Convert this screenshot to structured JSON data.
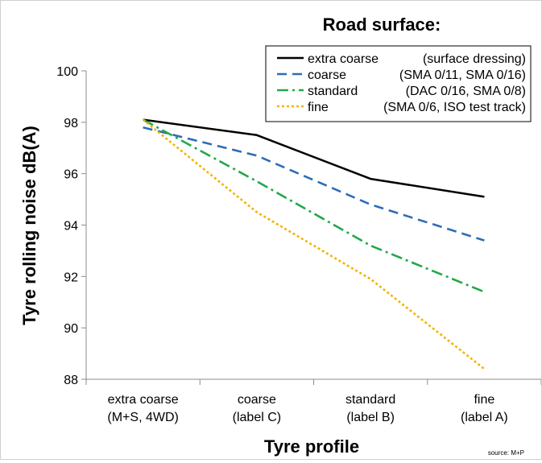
{
  "chart_data": {
    "type": "line",
    "legend_title": "Road surface:",
    "xlabel": "Tyre profile",
    "ylabel": "Tyre rolling noise dB(A)",
    "source": "source: M+P",
    "categories": [
      [
        "extra coarse",
        "(M+S, 4WD)"
      ],
      [
        "coarse",
        "(label C)"
      ],
      [
        "standard",
        "(label B)"
      ],
      [
        "fine",
        "(label A)"
      ]
    ],
    "ylim": [
      88,
      100
    ],
    "yticks": [
      88,
      90,
      92,
      94,
      96,
      98,
      100
    ],
    "grid": false,
    "legend_position": "top-right",
    "series": [
      {
        "name": "extra coarse",
        "detail": "(surface dressing)",
        "values": [
          98.1,
          97.5,
          95.8,
          95.1
        ],
        "color": "#000000",
        "style": "solid"
      },
      {
        "name": "coarse",
        "detail": "(SMA 0/11, SMA 0/16)",
        "values": [
          97.8,
          96.7,
          94.8,
          93.4
        ],
        "color": "#2e6db4",
        "style": "dash"
      },
      {
        "name": "standard",
        "detail": "(DAC 0/16, SMA 0/8)",
        "values": [
          98.1,
          95.7,
          93.2,
          91.4
        ],
        "color": "#22a84a",
        "style": "dashdot"
      },
      {
        "name": "fine",
        "detail": "(SMA 0/6, ISO test track)",
        "values": [
          98.1,
          94.5,
          91.9,
          88.4
        ],
        "color": "#f2b400",
        "style": "dot"
      }
    ]
  }
}
